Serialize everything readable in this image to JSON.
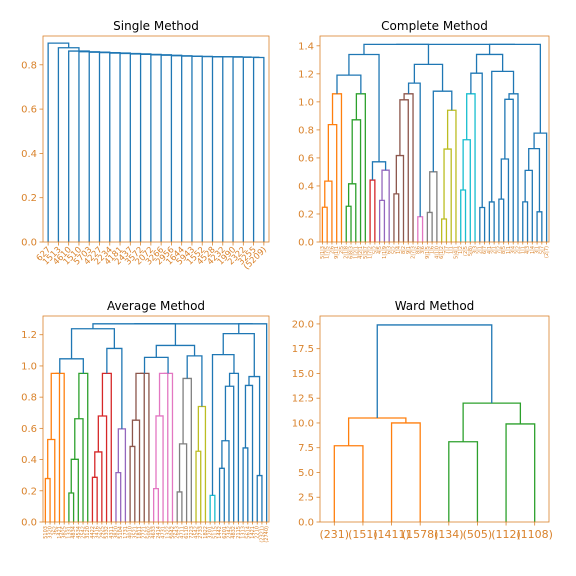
{
  "chart_data": [
    {
      "type": "dendrogram",
      "title": "Single Method",
      "ylim": [
        0,
        0.93
      ],
      "yticks": [
        "0.0",
        "0.2",
        "0.4",
        "0.6",
        "0.8"
      ],
      "ytick_values": [
        0,
        0.2,
        0.4,
        0.6,
        0.8
      ],
      "xtick_labels": [
        "627",
        "1513",
        "4610",
        "1510",
        "5703",
        "4227",
        "2234",
        "4181",
        "2437",
        "3572",
        "2072",
        "3266",
        "2956",
        "1644",
        "5943",
        "1552",
        "4528",
        "4232",
        "1990",
        "2322",
        "3255",
        "(5209)"
      ],
      "merge_heights": [
        0.898,
        0.877,
        0.862,
        0.859,
        0.857,
        0.855,
        0.853,
        0.851,
        0.849,
        0.847,
        0.845,
        0.843,
        0.841,
        0.839,
        0.838,
        0.837,
        0.836,
        0.836,
        0.835,
        0.834,
        0.833
      ],
      "link_color": "#1f77b4"
    },
    {
      "type": "dendrogram",
      "title": "Complete Method",
      "ylim": [
        0,
        1.47
      ],
      "yticks": [
        "0.0",
        "0.2",
        "0.4",
        "0.6",
        "0.8",
        "1.0",
        "1.2",
        "1.4"
      ],
      "ytick_values": [
        0,
        0.2,
        0.4,
        0.6,
        0.8,
        1.0,
        1.2,
        1.4
      ],
      "leaf_count": 48,
      "cluster_colors": [
        "#ff7f0e",
        "#2ca02c",
        "#d62728",
        "#9467bd",
        "#8c564b",
        "#e377c2",
        "#7f7f7f",
        "#bcbd22",
        "#17becf"
      ],
      "link_color": "#1f77b4"
    },
    {
      "type": "dendrogram",
      "title": "Average Method",
      "ylim": [
        0,
        1.32
      ],
      "yticks": [
        "0.0",
        "0.2",
        "0.4",
        "0.6",
        "0.8",
        "1.0",
        "1.2"
      ],
      "ytick_values": [
        0,
        0.2,
        0.4,
        0.6,
        0.8,
        1.0,
        1.2
      ],
      "leaf_count": 48,
      "cluster_colors": [
        "#ff7f0e",
        "#2ca02c",
        "#d62728",
        "#9467bd",
        "#8c564b",
        "#e377c2",
        "#7f7f7f",
        "#bcbd22",
        "#17becf"
      ],
      "link_color": "#1f77b4"
    },
    {
      "type": "dendrogram",
      "title": "Ward Method",
      "ylim": [
        0,
        20.8
      ],
      "yticks": [
        "0.0",
        "2.5",
        "5.0",
        "7.5",
        "10.0",
        "12.5",
        "15.0",
        "17.5",
        "20.0"
      ],
      "ytick_values": [
        0,
        2.5,
        5,
        7.5,
        10,
        12.5,
        15,
        17.5,
        20
      ],
      "xtick_labels": [
        "(231)",
        "(151)",
        "(1411)",
        "(1578)",
        "(134)",
        "(505)",
        "(112)",
        "(1108)"
      ],
      "merges": [
        {
          "a": 0,
          "b": 1,
          "h": 7.7,
          "color": "#ff7f0e"
        },
        {
          "a": 2,
          "b": 3,
          "h": 10.0,
          "color": "#ff7f0e"
        },
        {
          "a": 4,
          "b": 5,
          "h": 8.1,
          "color": "#2ca02c"
        },
        {
          "a": 6,
          "b": 7,
          "h": 9.9,
          "color": "#2ca02c"
        },
        {
          "a": "m0",
          "b": "m1",
          "h": 10.5,
          "color": "#ff7f0e"
        },
        {
          "a": "m2",
          "b": "m3",
          "h": 12.0,
          "color": "#2ca02c"
        },
        {
          "a": "m4",
          "b": "m5",
          "h": 19.9,
          "color": "#1f77b4"
        }
      ]
    }
  ],
  "dense_labels": {
    "complete": [
      "5|1|3",
      "1|7|5",
      "2|6",
      "9|1|1",
      "2|5",
      "2|1|8",
      "6|8|3",
      "1|2|1",
      "4|2|1",
      "5|3|7",
      "1|7|2",
      "5|2",
      "4|5",
      "1|1|9",
      "6|3",
      "5|2",
      "1|4",
      "8|2",
      "9|1",
      "2|7|3",
      "8|6",
      "3|6",
      "9|1|5",
      "1|6",
      "4|1|0",
      "6|1|2",
      "7|7",
      "1|1",
      "5|4|1",
      "1|2",
      "(2|5",
      "5|8)",
      "3|3",
      "2|1",
      "6|7",
      "4|1",
      "2|1",
      "7|2",
      "8|5",
      "1|1",
      "3|4",
      "2|2",
      "1|1",
      "4|3",
      "1|4",
      "3|1",
      "5|7",
      "(2|7)"
    ],
    "average": [
      "5103",
      "3320",
      "362",
      "1421",
      "3825",
      "1331",
      "4834",
      "4534",
      "2542",
      "3120",
      "4422",
      "3416",
      "2925",
      "5332",
      "4311",
      "3820",
      "5104",
      "1731",
      "4010",
      "3521",
      "1811",
      "2721",
      "5002",
      "4633",
      "2414",
      "4731",
      "1322",
      "5042",
      "2643",
      "4711",
      "6110",
      "7223",
      "4542",
      "2733",
      "1822",
      "3201",
      "5115",
      "1442",
      "6201",
      "2342",
      "4832",
      "2115",
      "1313",
      "5614",
      "1421",
      "2210",
      "(2321)",
      "(2740)"
    ]
  }
}
